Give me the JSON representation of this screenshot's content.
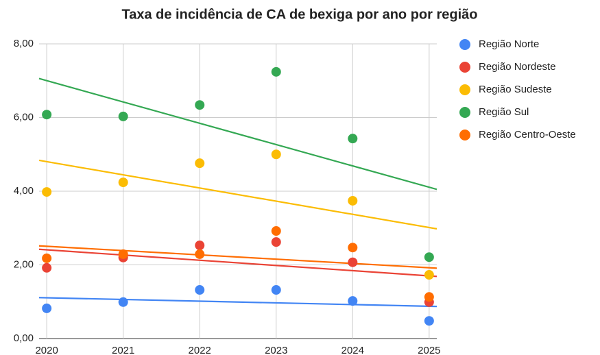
{
  "chart_data": {
    "type": "scatter",
    "title": "Taxa de incidência de CA de bexiga por ano por região",
    "x": [
      2020,
      2021,
      2022,
      2023,
      2024,
      2025
    ],
    "series": [
      {
        "name": "Região Norte",
        "color": "#4285f4",
        "values": [
          0.82,
          0.99,
          1.32,
          1.32,
          1.02,
          0.48
        ]
      },
      {
        "name": "Região Nordeste",
        "color": "#ea4335",
        "values": [
          1.92,
          2.2,
          2.53,
          2.62,
          2.07,
          0.99
        ]
      },
      {
        "name": "Região Sudeste",
        "color": "#fbbc04",
        "values": [
          3.98,
          4.24,
          4.76,
          5.0,
          3.74,
          1.73
        ]
      },
      {
        "name": "Região Sul",
        "color": "#34a853",
        "values": [
          6.08,
          6.03,
          6.34,
          7.24,
          5.43,
          2.21
        ]
      },
      {
        "name": "Região Centro-Oeste",
        "color": "#ff6d01",
        "values": [
          2.18,
          2.29,
          2.29,
          2.92,
          2.47,
          1.13
        ]
      }
    ],
    "xlim": [
      2019.9,
      2025.1
    ],
    "xticks": [
      2020,
      2021,
      2022,
      2023,
      2024,
      2025
    ],
    "ylim": [
      0,
      8
    ],
    "yticks": [
      {
        "value": 0,
        "label": "0,00"
      },
      {
        "value": 2,
        "label": "2,00"
      },
      {
        "value": 4,
        "label": "4,00"
      },
      {
        "value": 6,
        "label": "6,00"
      },
      {
        "value": 8,
        "label": "8,00"
      }
    ],
    "grid": true,
    "trendline": "linear",
    "legend": "right"
  }
}
